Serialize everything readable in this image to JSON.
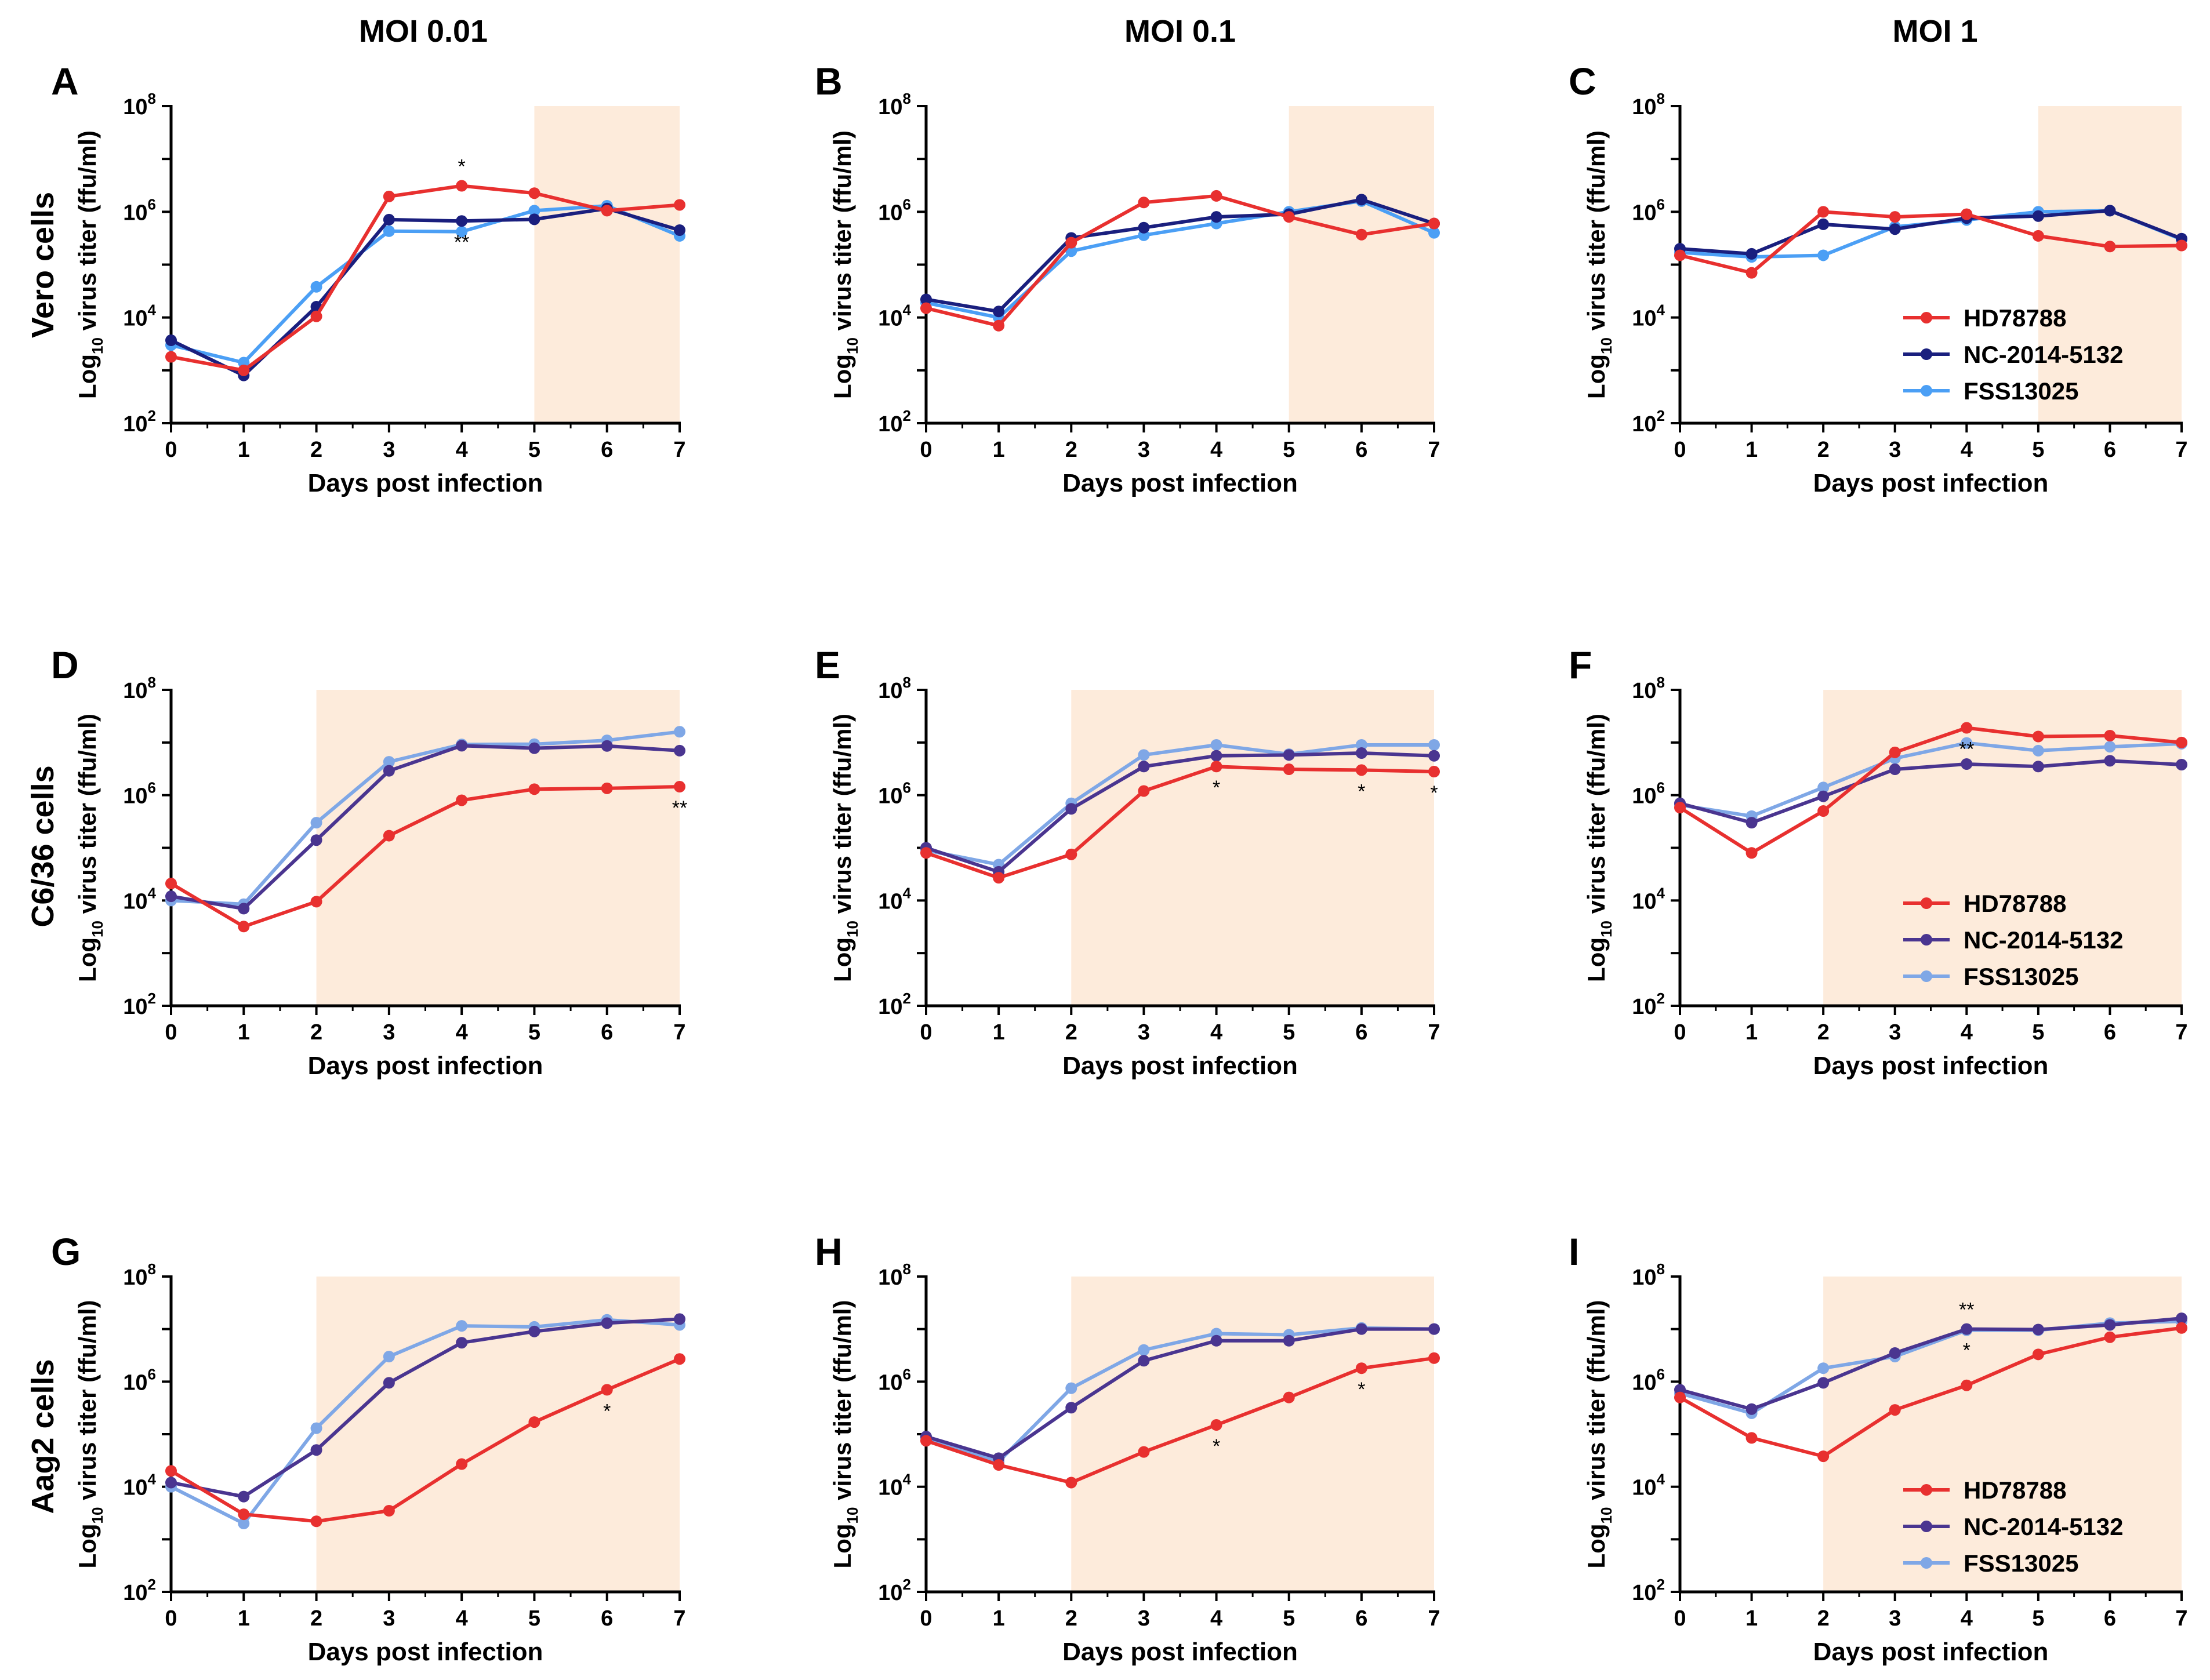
{
  "column_headers": [
    "MOI 0.01",
    "MOI 0.1",
    "MOI 1"
  ],
  "row_headers": [
    "Vero cells",
    "C6/36 cells",
    "Aag2 cells"
  ],
  "colors": {
    "HD78788": "#e8302f",
    "NC-2014-5132_row1": "#1a1f7e",
    "FSS13025_row1": "#4b9ff5",
    "NC-2014-5132": "#4a3590",
    "FSS13025": "#7fa7e6",
    "shade": "#fdebdb"
  },
  "chart_data": [
    {
      "panel": "A",
      "type": "line",
      "row": 0,
      "col": 0,
      "xlabel": "Days post infection",
      "ylabel_prefix": "Log",
      "ylabel_sub": "10",
      "ylabel_suffix": " virus titer (ffu/ml)",
      "x": [
        0,
        1,
        2,
        3,
        4,
        5,
        6,
        7
      ],
      "ylim_log10": [
        2,
        8
      ],
      "yscale": "log",
      "shaded_from_day": 5,
      "series": [
        {
          "name": "HD78788",
          "values": [
            1800,
            1000,
            10500,
            1950000,
            3100000,
            2250000,
            1050000,
            1350000
          ]
        },
        {
          "name": "NC-2014-5132",
          "values": [
            3700,
            800,
            16000,
            710000,
            670000,
            720000,
            1150000,
            450000
          ]
        },
        {
          "name": "FSS13025",
          "values": [
            3000,
            1400,
            38000,
            430000,
            420000,
            1050000,
            1300000,
            350000
          ]
        }
      ],
      "annotations": [
        {
          "day": 4,
          "text": "*",
          "pos": "above"
        },
        {
          "day": 4,
          "text": "**",
          "pos": "below"
        }
      ],
      "legend": false
    },
    {
      "panel": "B",
      "type": "line",
      "row": 0,
      "col": 1,
      "xlabel": "Days post infection",
      "ylabel_prefix": "Log",
      "ylabel_sub": "10",
      "ylabel_suffix": " virus titer (ffu/ml)",
      "x": [
        0,
        1,
        2,
        3,
        4,
        5,
        6,
        7
      ],
      "ylim_log10": [
        2,
        8
      ],
      "yscale": "log",
      "shaded_from_day": 5,
      "series": [
        {
          "name": "HD78788",
          "values": [
            15000,
            7000,
            260000,
            1500000,
            2000000,
            800000,
            370000,
            600000
          ]
        },
        {
          "name": "NC-2014-5132",
          "values": [
            22000,
            13000,
            320000,
            500000,
            800000,
            900000,
            1700000,
            600000
          ]
        },
        {
          "name": "FSS13025",
          "values": [
            19000,
            10000,
            180000,
            360000,
            600000,
            1000000,
            1600000,
            400000
          ]
        }
      ],
      "annotations": [],
      "legend": false
    },
    {
      "panel": "C",
      "type": "line",
      "row": 0,
      "col": 2,
      "xlabel": "Days post infection",
      "ylabel_prefix": "Log",
      "ylabel_sub": "10",
      "ylabel_suffix": " virus titer (ffu/ml)",
      "x": [
        0,
        1,
        2,
        3,
        4,
        5,
        6,
        7
      ],
      "ylim_log10": [
        2,
        8
      ],
      "yscale": "log",
      "shaded_from_day": 5,
      "series": [
        {
          "name": "HD78788",
          "values": [
            150000,
            70000,
            1000000,
            800000,
            900000,
            350000,
            220000,
            230000
          ]
        },
        {
          "name": "NC-2014-5132",
          "values": [
            200000,
            160000,
            580000,
            470000,
            760000,
            830000,
            1050000,
            310000
          ]
        },
        {
          "name": "FSS13025",
          "values": [
            170000,
            140000,
            150000,
            520000,
            700000,
            1000000,
            1050000,
            300000
          ]
        }
      ],
      "annotations": [],
      "legend": true
    },
    {
      "panel": "D",
      "type": "line",
      "row": 1,
      "col": 0,
      "xlabel": "Days post infection",
      "ylabel_prefix": "Log",
      "ylabel_sub": "10",
      "ylabel_suffix": " virus titer (ffu/ml)",
      "x": [
        0,
        1,
        2,
        3,
        4,
        5,
        6,
        7
      ],
      "ylim_log10": [
        2,
        8
      ],
      "yscale": "log",
      "shaded_from_day": 2,
      "series": [
        {
          "name": "HD78788",
          "values": [
            21000,
            3200,
            9500,
            170000,
            800000,
            1300000,
            1350000,
            1450000
          ]
        },
        {
          "name": "NC-2014-5132",
          "values": [
            12000,
            7000,
            140000,
            2900000,
            8700000,
            7800000,
            8600000,
            7000000
          ]
        },
        {
          "name": "FSS13025",
          "values": [
            10000,
            8500,
            300000,
            4300000,
            9200000,
            9300000,
            11000000,
            16000000
          ]
        }
      ],
      "annotations": [
        {
          "day": 7,
          "text": "**",
          "pos": "below"
        }
      ],
      "legend": false
    },
    {
      "panel": "E",
      "type": "line",
      "row": 1,
      "col": 1,
      "xlabel": "Days post infection",
      "ylabel_prefix": "Log",
      "ylabel_sub": "10",
      "ylabel_suffix": " virus titer (ffu/ml)",
      "x": [
        0,
        1,
        2,
        3,
        4,
        5,
        6,
        7
      ],
      "ylim_log10": [
        2,
        8
      ],
      "yscale": "log",
      "shaded_from_day": 2,
      "series": [
        {
          "name": "HD78788",
          "values": [
            80000,
            27000,
            75000,
            1200000,
            3500000,
            3100000,
            3000000,
            2800000
          ]
        },
        {
          "name": "NC-2014-5132",
          "values": [
            100000,
            35000,
            550000,
            3500000,
            5600000,
            5800000,
            6300000,
            5600000
          ]
        },
        {
          "name": "FSS13025",
          "values": [
            90000,
            48000,
            700000,
            5800000,
            9000000,
            6000000,
            9000000,
            9000000
          ]
        }
      ],
      "annotations": [
        {
          "day": 4,
          "text": "*",
          "pos": "below"
        },
        {
          "day": 6,
          "text": "*",
          "pos": "below"
        },
        {
          "day": 7,
          "text": "*",
          "pos": "below"
        }
      ],
      "legend": false
    },
    {
      "panel": "F",
      "type": "line",
      "row": 1,
      "col": 2,
      "xlabel": "Days post infection",
      "ylabel_prefix": "Log",
      "ylabel_sub": "10",
      "ylabel_suffix": " virus titer (ffu/ml)",
      "x": [
        0,
        1,
        2,
        3,
        4,
        5,
        6,
        7
      ],
      "ylim_log10": [
        2,
        8
      ],
      "yscale": "log",
      "shaded_from_day": 2,
      "series": [
        {
          "name": "HD78788",
          "values": [
            580000,
            80000,
            500000,
            6500000,
            19000000,
            13000000,
            13500000,
            10000000
          ]
        },
        {
          "name": "NC-2014-5132",
          "values": [
            700000,
            300000,
            950000,
            3100000,
            3900000,
            3500000,
            4500000,
            3800000
          ]
        },
        {
          "name": "FSS13025",
          "values": [
            650000,
            400000,
            1400000,
            5000000,
            9800000,
            7000000,
            8300000,
            9500000
          ]
        }
      ],
      "annotations": [
        {
          "day": 4,
          "text": "**",
          "pos": "below"
        }
      ],
      "legend": true
    },
    {
      "panel": "G",
      "type": "line",
      "row": 2,
      "col": 0,
      "xlabel": "Days post infection",
      "ylabel_prefix": "Log",
      "ylabel_sub": "10",
      "ylabel_suffix": " virus titer (ffu/ml)",
      "x": [
        0,
        1,
        2,
        3,
        4,
        5,
        6,
        7
      ],
      "ylim_log10": [
        2,
        8
      ],
      "yscale": "log",
      "shaded_from_day": 2,
      "series": [
        {
          "name": "HD78788",
          "values": [
            20000,
            3000,
            2200,
            3500,
            27000,
            170000,
            700000,
            2700000
          ]
        },
        {
          "name": "NC-2014-5132",
          "values": [
            12000,
            6500,
            50000,
            950000,
            5500000,
            9000000,
            13000000,
            15500000
          ]
        },
        {
          "name": "FSS13025",
          "values": [
            10000,
            2000,
            130000,
            3000000,
            11500000,
            11000000,
            15000000,
            12000000
          ]
        }
      ],
      "annotations": [
        {
          "day": 6,
          "text": "*",
          "pos": "below"
        }
      ],
      "legend": false
    },
    {
      "panel": "H",
      "type": "line",
      "row": 2,
      "col": 1,
      "xlabel": "Days post infection",
      "ylabel_prefix": "Log",
      "ylabel_sub": "10",
      "ylabel_suffix": " virus titer (ffu/ml)",
      "x": [
        0,
        1,
        2,
        3,
        4,
        5,
        6,
        7
      ],
      "ylim_log10": [
        2,
        8
      ],
      "yscale": "log",
      "shaded_from_day": 2,
      "series": [
        {
          "name": "HD78788",
          "values": [
            75000,
            26000,
            12000,
            46000,
            150000,
            500000,
            1800000,
            2800000
          ]
        },
        {
          "name": "NC-2014-5132",
          "values": [
            90000,
            35000,
            320000,
            2500000,
            6000000,
            6000000,
            10000000,
            10000000
          ]
        },
        {
          "name": "FSS13025",
          "values": [
            85000,
            30000,
            750000,
            4000000,
            8200000,
            7800000,
            10500000,
            10000000
          ]
        }
      ],
      "annotations": [
        {
          "day": 4,
          "text": "*",
          "pos": "below"
        },
        {
          "day": 6,
          "text": "*",
          "pos": "below"
        }
      ],
      "legend": false
    },
    {
      "panel": "I",
      "type": "line",
      "row": 2,
      "col": 2,
      "xlabel": "Days post infection",
      "ylabel_prefix": "Log",
      "ylabel_sub": "10",
      "ylabel_suffix": " virus titer (ffu/ml)",
      "x": [
        0,
        1,
        2,
        3,
        4,
        5,
        6,
        7
      ],
      "ylim_log10": [
        2,
        8
      ],
      "yscale": "log",
      "shaded_from_day": 2,
      "series": [
        {
          "name": "HD78788",
          "values": [
            500000,
            85000,
            38000,
            290000,
            850000,
            3300000,
            7000000,
            10500000
          ]
        },
        {
          "name": "NC-2014-5132",
          "values": [
            700000,
            300000,
            950000,
            3500000,
            10000000,
            9800000,
            12000000,
            16000000
          ]
        },
        {
          "name": "FSS13025",
          "values": [
            600000,
            250000,
            1800000,
            3000000,
            9500000,
            9500000,
            13000000,
            14000000
          ]
        }
      ],
      "annotations": [
        {
          "day": 4,
          "text": "**",
          "pos": "above"
        },
        {
          "day": 4,
          "text": "*",
          "pos": "below"
        }
      ],
      "legend": true
    }
  ]
}
